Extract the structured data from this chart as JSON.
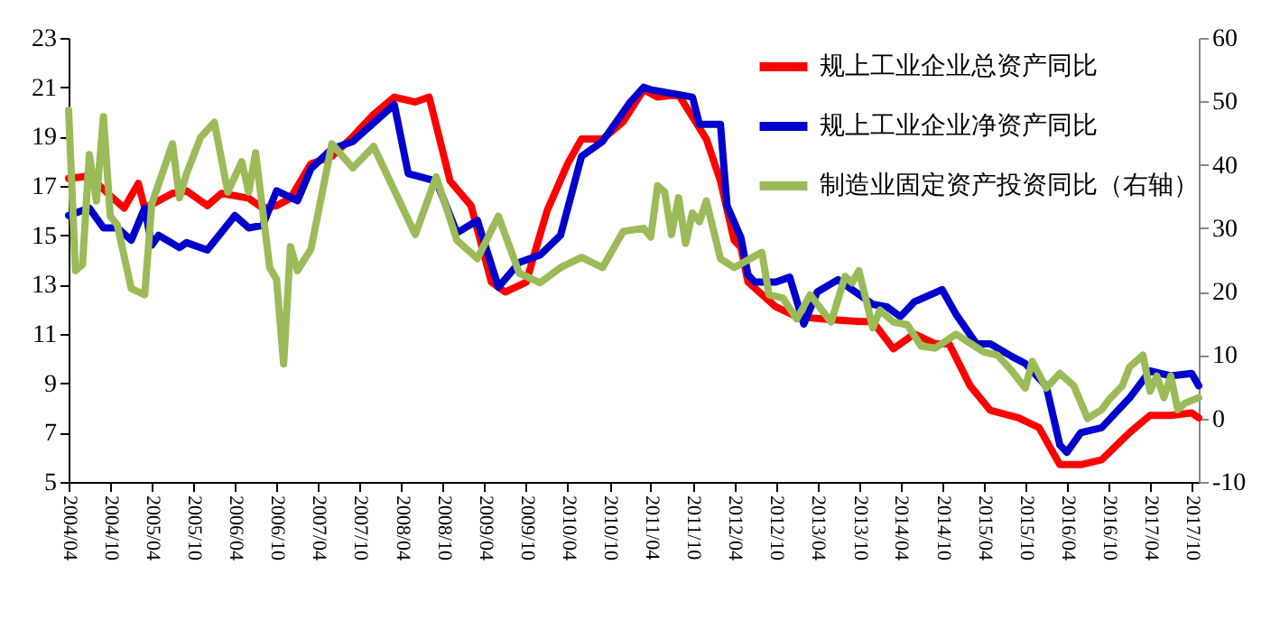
{
  "chart_data": {
    "type": "line",
    "legend": "top right",
    "xlim": [
      "2004-04",
      "2017-11"
    ],
    "ylim": [
      5,
      23
    ],
    "yticks": [
      5,
      7,
      9,
      11,
      13,
      15,
      17,
      19,
      21,
      23
    ],
    "y2lim": [
      -10,
      60
    ],
    "y2ticks": [
      -10,
      0,
      10,
      20,
      30,
      40,
      50,
      60
    ],
    "xticks": [
      {
        "value": "2004-04",
        "label": "2004/04"
      },
      {
        "value": "2004-10",
        "label": "2004/10"
      },
      {
        "value": "2005-04",
        "label": "2005/04"
      },
      {
        "value": "2005-10",
        "label": "2005/10"
      },
      {
        "value": "2006-04",
        "label": "2006/04"
      },
      {
        "value": "2006-10",
        "label": "2006/10"
      },
      {
        "value": "2007-04",
        "label": "2007/04"
      },
      {
        "value": "2007-10",
        "label": "2007/10"
      },
      {
        "value": "2008-04",
        "label": "2008/04"
      },
      {
        "value": "2008-10",
        "label": "2008/10"
      },
      {
        "value": "2009-04",
        "label": "2009/04"
      },
      {
        "value": "2009-10",
        "label": "2009/10"
      },
      {
        "value": "2010-04",
        "label": "2010/04"
      },
      {
        "value": "2010-10",
        "label": "2010/10"
      },
      {
        "value": "2011-04",
        "label": "2011/04"
      },
      {
        "value": "2011-10",
        "label": "2011/10"
      },
      {
        "value": "2012-04",
        "label": "2012/04"
      },
      {
        "value": "2012-10",
        "label": "2012/10"
      },
      {
        "value": "2013-04",
        "label": "2013/04"
      },
      {
        "value": "2013-10",
        "label": "2013/10"
      },
      {
        "value": "2014-04",
        "label": "2014/04"
      },
      {
        "value": "2014-10",
        "label": "2014/10"
      },
      {
        "value": "2015-04",
        "label": "2015/04"
      },
      {
        "value": "2015-10",
        "label": "2015/10"
      },
      {
        "value": "2016-04",
        "label": "2016/04"
      },
      {
        "value": "2016-10",
        "label": "2016/10"
      },
      {
        "value": "2017-04",
        "label": "2017/04"
      },
      {
        "value": "2017-10",
        "label": "2017/10"
      }
    ],
    "series": [
      {
        "name": "规上工业企业总资产同比",
        "color": "#ff0000",
        "x": [
          "2004-04",
          "2004-07",
          "2004-10",
          "2004-12",
          "2005-02",
          "2005-03",
          "2005-07",
          "2005-09",
          "2005-12",
          "2006-02",
          "2006-06",
          "2006-08",
          "2006-10",
          "2006-12",
          "2007-03",
          "2007-06",
          "2007-09",
          "2007-12",
          "2008-03",
          "2008-06",
          "2008-08",
          "2008-11",
          "2009-02",
          "2009-05",
          "2009-07",
          "2009-10",
          "2010-01",
          "2010-04",
          "2010-06",
          "2010-09",
          "2010-12",
          "2011-03",
          "2011-05",
          "2011-08",
          "2011-12",
          "2012-02",
          "2012-04",
          "2012-05",
          "2012-06",
          "2012-10",
          "2013-01",
          "2013-05",
          "2013-10",
          "2013-12",
          "2014-03",
          "2014-06",
          "2014-09",
          "2014-11",
          "2015-02",
          "2015-05",
          "2015-09",
          "2015-12",
          "2016-03",
          "2016-06",
          "2016-09",
          "2017-01",
          "2017-04",
          "2017-07",
          "2017-10",
          "2017-11"
        ],
        "values": [
          17.3,
          17.4,
          16.6,
          16.1,
          17.1,
          16.1,
          16.7,
          16.8,
          16.2,
          16.7,
          16.5,
          16.1,
          16.2,
          16.5,
          17.9,
          18.2,
          19.0,
          19.9,
          20.6,
          20.4,
          20.6,
          17.2,
          16.2,
          13.1,
          12.7,
          13.1,
          16.0,
          17.9,
          18.9,
          18.9,
          19.6,
          20.9,
          20.6,
          20.7,
          18.9,
          17.2,
          14.8,
          14.5,
          13.1,
          12.1,
          11.7,
          11.6,
          11.5,
          11.5,
          10.4,
          11.0,
          10.6,
          10.6,
          8.9,
          7.9,
          7.6,
          7.2,
          5.7,
          5.7,
          5.9,
          7.0,
          7.7,
          7.7,
          7.8,
          7.6
        ]
      },
      {
        "name": "规上工业企业净资产同比",
        "color": "#0000cc",
        "x": [
          "2004-04",
          "2004-07",
          "2004-09",
          "2004-11",
          "2005-01",
          "2005-03",
          "2005-04",
          "2005-05",
          "2005-08",
          "2005-09",
          "2005-12",
          "2006-04",
          "2006-06",
          "2006-08",
          "2006-10",
          "2007-01",
          "2007-03",
          "2007-06",
          "2007-09",
          "2008-03",
          "2008-05",
          "2008-09",
          "2008-12",
          "2009-03",
          "2009-06",
          "2009-09",
          "2009-12",
          "2010-03",
          "2010-06",
          "2010-09",
          "2011-01",
          "2011-03",
          "2011-04",
          "2011-10",
          "2011-11",
          "2012-02",
          "2012-03",
          "2012-05",
          "2012-06",
          "2012-07",
          "2012-10",
          "2012-12",
          "2013-02",
          "2013-04",
          "2013-07",
          "2013-10",
          "2013-12",
          "2014-02",
          "2014-04",
          "2014-06",
          "2014-10",
          "2014-12",
          "2015-03",
          "2015-05",
          "2015-08",
          "2015-10",
          "2016-01",
          "2016-03",
          "2016-04",
          "2016-06",
          "2016-09",
          "2016-12",
          "2017-01",
          "2017-04",
          "2017-07",
          "2017-10",
          "2017-11"
        ],
        "values": [
          15.8,
          16.1,
          15.3,
          15.3,
          14.8,
          16.1,
          14.6,
          15.0,
          14.5,
          14.7,
          14.4,
          15.8,
          15.3,
          15.4,
          16.8,
          16.4,
          17.7,
          18.5,
          18.8,
          20.3,
          17.5,
          17.2,
          15.1,
          15.6,
          12.9,
          13.9,
          14.2,
          15.0,
          18.2,
          18.8,
          20.4,
          21.0,
          20.9,
          20.6,
          19.5,
          19.5,
          16.2,
          14.9,
          13.4,
          13.1,
          13.1,
          13.3,
          11.4,
          12.7,
          13.2,
          12.6,
          12.2,
          12.1,
          11.7,
          12.3,
          12.8,
          11.8,
          10.6,
          10.6,
          10.1,
          9.8,
          8.9,
          6.5,
          6.2,
          7.0,
          7.2,
          8.1,
          8.4,
          9.5,
          9.3,
          9.4,
          8.9
        ]
      },
      {
        "name": "制造业固定资产投资同比（右轴）",
        "color": "#9bbb59",
        "axis": "y2",
        "x": [
          "2004-04",
          "2004-05",
          "2004-06",
          "2004-07",
          "2004-08",
          "2004-09",
          "2004-10",
          "2004-11",
          "2005-01",
          "2005-03",
          "2005-04",
          "2005-07",
          "2005-08",
          "2005-09",
          "2005-11",
          "2006-01",
          "2006-03",
          "2006-05",
          "2006-06",
          "2006-07",
          "2006-09",
          "2006-10",
          "2006-11",
          "2006-12",
          "2007-01",
          "2007-03",
          "2007-06",
          "2007-09",
          "2007-12",
          "2008-06",
          "2008-09",
          "2008-12",
          "2009-03",
          "2009-06",
          "2009-09",
          "2009-12",
          "2010-03",
          "2010-06",
          "2010-09",
          "2010-12",
          "2011-03",
          "2011-04",
          "2011-05",
          "2011-06",
          "2011-07",
          "2011-08",
          "2011-09",
          "2011-10",
          "2011-11",
          "2011-12",
          "2012-02",
          "2012-04",
          "2012-08",
          "2012-09",
          "2012-11",
          "2013-01",
          "2013-03",
          "2013-06",
          "2013-08",
          "2013-09",
          "2013-10",
          "2013-12",
          "2014-01",
          "2014-03",
          "2014-05",
          "2014-07",
          "2014-09",
          "2014-12",
          "2015-04",
          "2015-06",
          "2015-08",
          "2015-10",
          "2015-11",
          "2016-01",
          "2016-03",
          "2016-05",
          "2016-07",
          "2016-09",
          "2016-10",
          "2016-12",
          "2017-01",
          "2017-03",
          "2017-04",
          "2017-05",
          "2017-06",
          "2017-07",
          "2017-08",
          "2017-09",
          "2017-11"
        ],
        "values": [
          48.6,
          23.3,
          24.3,
          41.6,
          34.3,
          47.6,
          31.9,
          30.5,
          20.5,
          19.5,
          33.8,
          43.3,
          34.8,
          38.6,
          44.3,
          46.7,
          35.7,
          40.5,
          35.7,
          41.9,
          23.8,
          21.9,
          8.6,
          27.1,
          23.3,
          26.7,
          43.3,
          39.5,
          42.9,
          29.0,
          38.1,
          28.1,
          25.2,
          31.9,
          22.9,
          21.4,
          23.8,
          25.4,
          23.8,
          29.5,
          30.0,
          28.6,
          36.7,
          35.7,
          29.0,
          34.8,
          27.6,
          32.4,
          31.0,
          34.3,
          25.2,
          23.8,
          26.2,
          19.5,
          19.0,
          15.7,
          19.5,
          15.2,
          22.4,
          21.4,
          23.3,
          14.3,
          17.1,
          15.2,
          14.8,
          11.4,
          11.1,
          13.3,
          10.5,
          10.0,
          7.6,
          4.8,
          9.0,
          4.8,
          7.1,
          5.2,
          0.0,
          1.4,
          2.9,
          5.2,
          8.1,
          10.0,
          4.3,
          6.7,
          3.3,
          6.7,
          1.4,
          2.4,
          3.3
        ]
      }
    ]
  }
}
